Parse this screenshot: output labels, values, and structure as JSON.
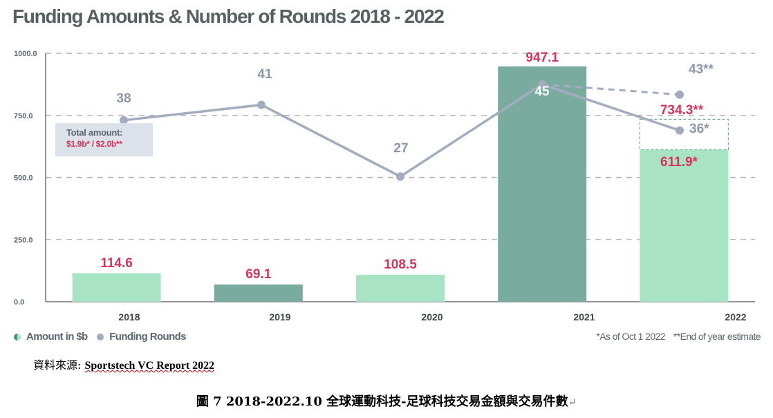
{
  "title": "Funding Amounts & Number of Rounds 2018 - 2022",
  "total_box": {
    "line1": "Total amount:",
    "line2": "$1.9b* / $2.0b**"
  },
  "legend": {
    "amount": "Amount in $b",
    "rounds": "Funding Rounds"
  },
  "footnotes": {
    "asof": "*As of Oct 1 2022",
    "eoy": "**End of year estimate"
  },
  "source": {
    "label": "資料來源: ",
    "value": "Sportstech VC Report 2022"
  },
  "caption": {
    "text": "圖 7 2018-2022.10 全球運動科技-足球科技交易金額與交易件數",
    "mark": "↵"
  },
  "colors": {
    "bar_dark": "#79ac9f",
    "bar_light": "#a8e4c4",
    "line": "#a3acbf",
    "amount_label": "#d7325a",
    "rounds_label": "#8d97a8",
    "axis": "#5d6770"
  },
  "chart_data": {
    "type": "bar",
    "categories": [
      "2018",
      "2019",
      "2020",
      "2021",
      "2022"
    ],
    "ylim": [
      0,
      1000
    ],
    "yticks": [
      "0.0",
      "250.0",
      "500.0",
      "750.0",
      "1000.0"
    ],
    "grid": true,
    "series": [
      {
        "name": "Amount in $b",
        "type": "bar",
        "values": [
          114.6,
          69.1,
          108.5,
          947.1,
          611.9
        ],
        "labels": [
          "114.6",
          "69.1",
          "108.5",
          "947.1",
          "611.9*"
        ],
        "shade": [
          "light",
          "dark",
          "light",
          "dark",
          "light"
        ]
      },
      {
        "name": "Amount in $b (end of year estimate)",
        "type": "bar-outline",
        "category": "2022",
        "value": 734.3,
        "label": "734.3**"
      },
      {
        "name": "Funding Rounds",
        "type": "line",
        "values": [
          38,
          41,
          27,
          45,
          36
        ],
        "labels": [
          "38",
          "41",
          "27",
          "45",
          "36*"
        ]
      },
      {
        "name": "Funding Rounds (end of year estimate)",
        "type": "dashed-line",
        "from_category": "2021",
        "category": "2022",
        "value": 43,
        "label": "43**"
      }
    ]
  }
}
